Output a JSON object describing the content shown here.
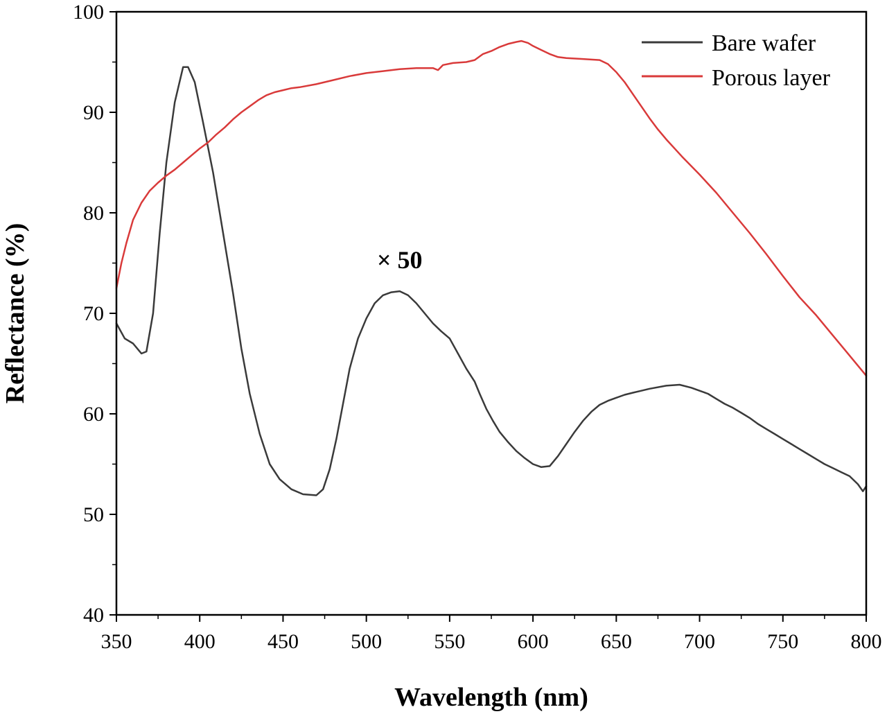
{
  "chart_data": {
    "type": "line",
    "xlabel": "Wavelength (nm)",
    "ylabel": "Reflectance (%)",
    "xlim": [
      350,
      800
    ],
    "ylim": [
      40,
      100
    ],
    "xticks": [
      350,
      400,
      450,
      500,
      550,
      600,
      650,
      700,
      750,
      800
    ],
    "yticks": [
      40,
      50,
      60,
      70,
      80,
      90,
      100
    ],
    "legend_position": "top-right",
    "annotations": [
      {
        "text": "× 50",
        "x": 520,
        "y": 74.5
      }
    ],
    "series": [
      {
        "name": "Bare wafer",
        "color": "#3a3a3a",
        "points": [
          [
            350,
            69.0
          ],
          [
            355,
            67.5
          ],
          [
            360,
            67.0
          ],
          [
            365,
            66.0
          ],
          [
            368,
            66.2
          ],
          [
            372,
            70.0
          ],
          [
            376,
            78.0
          ],
          [
            380,
            85.0
          ],
          [
            385,
            91.0
          ],
          [
            390,
            94.5
          ],
          [
            393,
            94.5
          ],
          [
            397,
            93.0
          ],
          [
            402,
            89.0
          ],
          [
            408,
            84.0
          ],
          [
            414,
            78.0
          ],
          [
            420,
            72.0
          ],
          [
            425,
            66.5
          ],
          [
            430,
            62.0
          ],
          [
            436,
            58.0
          ],
          [
            442,
            55.0
          ],
          [
            448,
            53.5
          ],
          [
            455,
            52.5
          ],
          [
            462,
            52.0
          ],
          [
            470,
            51.9
          ],
          [
            474,
            52.5
          ],
          [
            478,
            54.5
          ],
          [
            482,
            57.5
          ],
          [
            486,
            61.0
          ],
          [
            490,
            64.5
          ],
          [
            495,
            67.5
          ],
          [
            500,
            69.5
          ],
          [
            505,
            71.0
          ],
          [
            510,
            71.8
          ],
          [
            515,
            72.1
          ],
          [
            520,
            72.2
          ],
          [
            525,
            71.8
          ],
          [
            530,
            71.0
          ],
          [
            535,
            70.0
          ],
          [
            540,
            69.0
          ],
          [
            545,
            68.2
          ],
          [
            550,
            67.5
          ],
          [
            555,
            66.0
          ],
          [
            560,
            64.5
          ],
          [
            565,
            63.2
          ],
          [
            568,
            62.0
          ],
          [
            572,
            60.5
          ],
          [
            576,
            59.3
          ],
          [
            580,
            58.2
          ],
          [
            585,
            57.2
          ],
          [
            590,
            56.3
          ],
          [
            595,
            55.6
          ],
          [
            600,
            55.0
          ],
          [
            605,
            54.7
          ],
          [
            610,
            54.8
          ],
          [
            615,
            55.8
          ],
          [
            620,
            57.0
          ],
          [
            625,
            58.2
          ],
          [
            630,
            59.3
          ],
          [
            635,
            60.2
          ],
          [
            640,
            60.9
          ],
          [
            645,
            61.3
          ],
          [
            650,
            61.6
          ],
          [
            655,
            61.9
          ],
          [
            660,
            62.1
          ],
          [
            665,
            62.3
          ],
          [
            670,
            62.5
          ],
          [
            680,
            62.8
          ],
          [
            688,
            62.9
          ],
          [
            695,
            62.6
          ],
          [
            700,
            62.3
          ],
          [
            705,
            62.0
          ],
          [
            710,
            61.5
          ],
          [
            715,
            61.0
          ],
          [
            720,
            60.6
          ],
          [
            725,
            60.1
          ],
          [
            730,
            59.6
          ],
          [
            735,
            59.0
          ],
          [
            740,
            58.5
          ],
          [
            745,
            58.0
          ],
          [
            750,
            57.5
          ],
          [
            755,
            57.0
          ],
          [
            760,
            56.5
          ],
          [
            765,
            56.0
          ],
          [
            770,
            55.5
          ],
          [
            775,
            55.0
          ],
          [
            780,
            54.6
          ],
          [
            785,
            54.2
          ],
          [
            790,
            53.8
          ],
          [
            795,
            53.0
          ],
          [
            798,
            52.3
          ],
          [
            800,
            52.8
          ]
        ]
      },
      {
        "name": "Porous layer",
        "color": "#d93a3a",
        "points": [
          [
            350,
            72.5
          ],
          [
            353,
            75.0
          ],
          [
            356,
            77.0
          ],
          [
            360,
            79.3
          ],
          [
            365,
            81.0
          ],
          [
            370,
            82.2
          ],
          [
            375,
            83.0
          ],
          [
            380,
            83.7
          ],
          [
            385,
            84.3
          ],
          [
            390,
            85.0
          ],
          [
            395,
            85.7
          ],
          [
            400,
            86.4
          ],
          [
            405,
            87.0
          ],
          [
            410,
            87.8
          ],
          [
            415,
            88.5
          ],
          [
            420,
            89.3
          ],
          [
            425,
            90.0
          ],
          [
            430,
            90.6
          ],
          [
            435,
            91.2
          ],
          [
            440,
            91.7
          ],
          [
            445,
            92.0
          ],
          [
            450,
            92.2
          ],
          [
            455,
            92.4
          ],
          [
            460,
            92.5
          ],
          [
            470,
            92.8
          ],
          [
            480,
            93.2
          ],
          [
            490,
            93.6
          ],
          [
            500,
            93.9
          ],
          [
            510,
            94.1
          ],
          [
            520,
            94.3
          ],
          [
            530,
            94.4
          ],
          [
            540,
            94.4
          ],
          [
            543,
            94.2
          ],
          [
            546,
            94.7
          ],
          [
            552,
            94.9
          ],
          [
            560,
            95.0
          ],
          [
            565,
            95.2
          ],
          [
            570,
            95.8
          ],
          [
            575,
            96.1
          ],
          [
            580,
            96.5
          ],
          [
            585,
            96.8
          ],
          [
            590,
            97.0
          ],
          [
            593,
            97.1
          ],
          [
            597,
            96.9
          ],
          [
            600,
            96.6
          ],
          [
            605,
            96.2
          ],
          [
            610,
            95.8
          ],
          [
            615,
            95.5
          ],
          [
            620,
            95.4
          ],
          [
            630,
            95.3
          ],
          [
            640,
            95.2
          ],
          [
            645,
            94.8
          ],
          [
            650,
            94.0
          ],
          [
            655,
            93.0
          ],
          [
            660,
            91.8
          ],
          [
            665,
            90.6
          ],
          [
            670,
            89.4
          ],
          [
            675,
            88.3
          ],
          [
            680,
            87.3
          ],
          [
            685,
            86.4
          ],
          [
            690,
            85.5
          ],
          [
            700,
            83.8
          ],
          [
            710,
            82.0
          ],
          [
            720,
            80.0
          ],
          [
            730,
            78.0
          ],
          [
            740,
            75.9
          ],
          [
            750,
            73.7
          ],
          [
            760,
            71.6
          ],
          [
            770,
            69.8
          ],
          [
            780,
            67.8
          ],
          [
            790,
            65.8
          ],
          [
            795,
            64.8
          ],
          [
            800,
            63.8
          ]
        ]
      }
    ]
  }
}
